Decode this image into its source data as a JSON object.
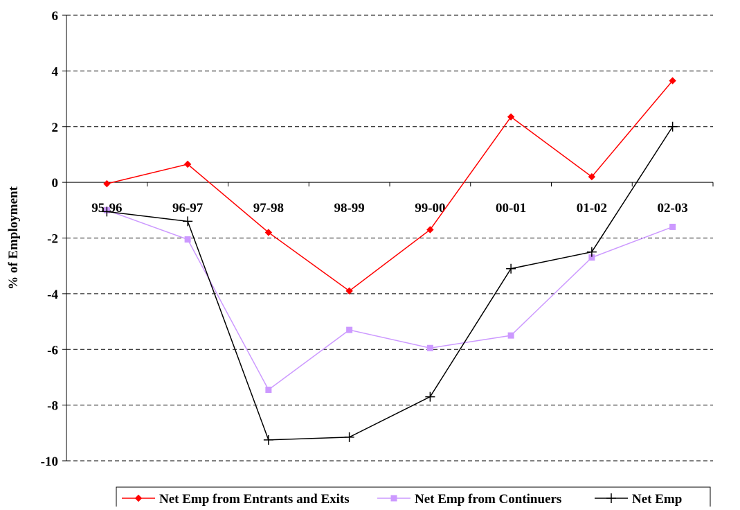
{
  "chart_data": {
    "type": "line",
    "title": "",
    "xlabel": "",
    "ylabel": "% of Employment",
    "categories": [
      "95-96",
      "96-97",
      "97-98",
      "98-99",
      "99-00",
      "00-01",
      "01-02",
      "02-03"
    ],
    "ylim": [
      -10,
      6
    ],
    "yticks": [
      6,
      4,
      2,
      0,
      -2,
      -4,
      -6,
      -8,
      -10
    ],
    "grid": "horizontal dashed",
    "legend_position": "bottom",
    "series": [
      {
        "name": "Net Emp from Entrants and Exits",
        "color": "#ff0000",
        "marker": "diamond",
        "values": [
          -0.05,
          0.65,
          -1.8,
          -3.9,
          -1.7,
          2.35,
          0.2,
          3.65
        ]
      },
      {
        "name": "Net Emp from Continuers",
        "color": "#cc99ff",
        "marker": "square",
        "values": [
          -1.0,
          -2.05,
          -7.45,
          -5.3,
          -5.95,
          -5.5,
          -2.7,
          -1.6
        ]
      },
      {
        "name": "Net Emp",
        "color": "#000000",
        "marker": "plus",
        "values": [
          -1.05,
          -1.4,
          -9.25,
          -9.15,
          -7.7,
          -3.1,
          -2.5,
          2.0
        ]
      }
    ]
  }
}
